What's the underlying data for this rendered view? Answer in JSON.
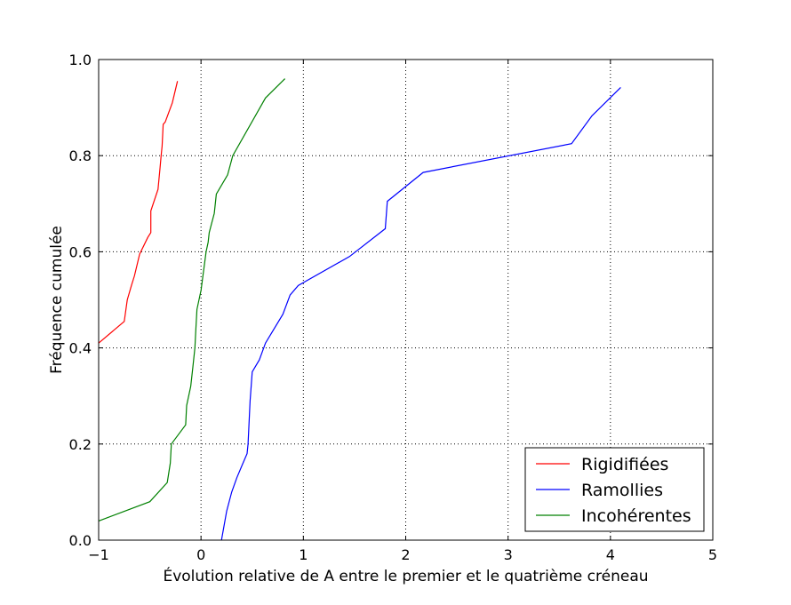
{
  "chart_data": {
    "type": "line",
    "xlabel": "Évolution relative de A entre le premier et le quatrième créneau",
    "ylabel": "Fréquence cumulée",
    "xlim": [
      -1,
      5
    ],
    "ylim": [
      0,
      1.0
    ],
    "xticks": [
      -1,
      0,
      1,
      2,
      3,
      4,
      5
    ],
    "yticks": [
      0.0,
      0.2,
      0.4,
      0.6,
      0.8,
      1.0
    ],
    "xtick_labels": [
      "−1",
      "0",
      "1",
      "2",
      "3",
      "4",
      "5"
    ],
    "ytick_labels": [
      "0.0",
      "0.2",
      "0.4",
      "0.6",
      "0.8",
      "1.0"
    ],
    "grid": true,
    "legend_position": "lower-right",
    "series": [
      {
        "name": "Rigidifiées",
        "color": "#ff0000",
        "x": [
          -1.0,
          -0.75,
          -0.72,
          -0.68,
          -0.65,
          -0.6,
          -0.52,
          -0.49,
          -0.49,
          -0.42,
          -0.4,
          -0.39,
          -0.38,
          -0.37,
          -0.35,
          -0.28,
          -0.23
        ],
        "y": [
          0.41,
          0.455,
          0.5,
          0.53,
          0.55,
          0.595,
          0.63,
          0.64,
          0.685,
          0.73,
          0.775,
          0.8,
          0.82,
          0.865,
          0.87,
          0.91,
          0.955
        ]
      },
      {
        "name": "Ramollies",
        "color": "#0000ff",
        "x": [
          0.2,
          0.25,
          0.3,
          0.35,
          0.4,
          0.45,
          0.46,
          0.48,
          0.5,
          0.57,
          0.63,
          0.8,
          0.87,
          0.95,
          1.45,
          1.8,
          1.82,
          2.17,
          3.62,
          3.82,
          4.1
        ],
        "y": [
          0.0,
          0.06,
          0.1,
          0.13,
          0.155,
          0.18,
          0.2,
          0.29,
          0.35,
          0.375,
          0.41,
          0.47,
          0.51,
          0.53,
          0.59,
          0.648,
          0.705,
          0.765,
          0.825,
          0.883,
          0.942
        ]
      },
      {
        "name": "Incohérentes",
        "color": "#008000",
        "x": [
          -1.0,
          -0.5,
          -0.33,
          -0.3,
          -0.29,
          -0.15,
          -0.14,
          -0.1,
          -0.08,
          -0.06,
          -0.05,
          -0.04,
          0.0,
          0.05,
          0.07,
          0.08,
          0.13,
          0.15,
          0.26,
          0.31,
          0.63,
          0.82
        ],
        "y": [
          0.04,
          0.08,
          0.12,
          0.16,
          0.2,
          0.24,
          0.28,
          0.32,
          0.36,
          0.4,
          0.44,
          0.48,
          0.52,
          0.6,
          0.62,
          0.64,
          0.68,
          0.72,
          0.76,
          0.8,
          0.92,
          0.96
        ]
      }
    ]
  }
}
